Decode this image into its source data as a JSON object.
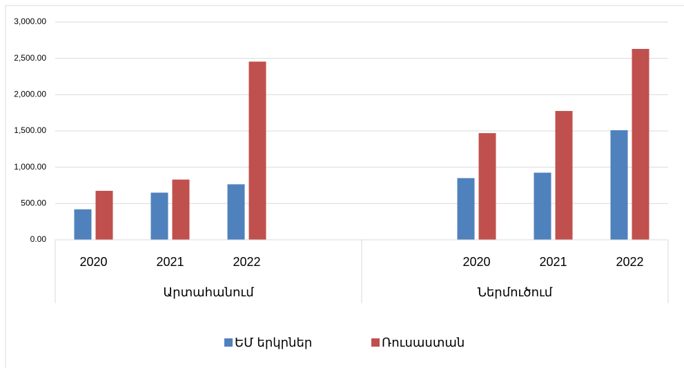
{
  "chart_data": {
    "type": "bar",
    "category_groups": [
      {
        "name": "Արտահանում",
        "categories": [
          "2020",
          "2021",
          "2022",
          null
        ]
      },
      {
        "name": "Ներմուծում",
        "categories": [
          null,
          "2020",
          "2021",
          "2022"
        ]
      }
    ],
    "series": [
      {
        "name": "ԵՄ երկրներ",
        "color": "#4f81bd",
        "values": [
          420,
          650,
          765,
          null,
          null,
          850,
          925,
          1510
        ]
      },
      {
        "name": "Ռուսաստան",
        "color": "#c0504d",
        "values": [
          675,
          830,
          2455,
          null,
          null,
          1470,
          1775,
          2630
        ]
      }
    ],
    "ylim": [
      0,
      3000
    ],
    "yticks": [
      {
        "value": 0,
        "label": "0.00"
      },
      {
        "value": 500,
        "label": "500.00"
      },
      {
        "value": 1000,
        "label": "1,000.00"
      },
      {
        "value": 1500,
        "label": "1,500.00"
      },
      {
        "value": 2000,
        "label": "2,000.00"
      },
      {
        "value": 2500,
        "label": "2,500.00"
      },
      {
        "value": 3000,
        "label": "3,000.00"
      }
    ],
    "grid": true,
    "legend": "bottom"
  }
}
